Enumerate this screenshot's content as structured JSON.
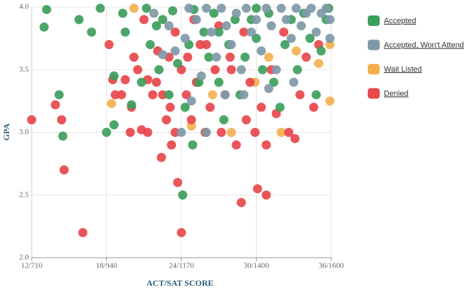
{
  "chart_data": {
    "type": "scatter",
    "xlabel": "ACT/SAT SCORE",
    "ylabel": "GPA",
    "xlim": [
      12,
      36
    ],
    "ylim": [
      2,
      4
    ],
    "xticks": [
      {
        "value": 12,
        "label": "12/710"
      },
      {
        "value": 18,
        "label": "18/940"
      },
      {
        "value": 24,
        "label": "24/1170"
      },
      {
        "value": 30,
        "label": "30/1400"
      },
      {
        "value": 36,
        "label": "36/1600"
      }
    ],
    "yticks": [
      {
        "value": 2,
        "label": "2.0"
      },
      2.5,
      {
        "value": 3,
        "label": "3.0"
      },
      3.5,
      {
        "value": 4,
        "label": "4.0"
      }
    ],
    "grid": true,
    "legend": "right",
    "series": [
      {
        "name": "Accepted",
        "color": "#3d9e5c",
        "x": [
          13.0,
          13.2,
          14.2,
          14.5,
          15.8,
          16.8,
          17.5,
          18.0,
          18.6,
          18.6,
          19.3,
          19.5,
          20.0,
          20.8,
          21.2,
          21.5,
          22.2,
          22.5,
          23.0,
          23.3,
          23.7,
          24.1,
          24.3,
          24.6,
          24.9,
          25.4,
          25.8,
          26.2,
          26.6,
          27.0,
          27.4,
          27.8,
          28.3,
          28.7,
          29.1,
          29.6,
          30.0,
          30.5,
          31.0,
          31.4,
          31.9,
          32.3,
          32.8,
          33.3,
          33.8,
          34.3,
          34.8,
          35.2,
          35.6,
          35.8,
          25.0,
          22.0,
          27.0,
          30.0
        ],
        "values": [
          3.84,
          3.98,
          3.3,
          2.97,
          3.9,
          3.8,
          3.99,
          3.0,
          3.06,
          3.45,
          3.95,
          3.8,
          3.22,
          3.4,
          3.99,
          3.7,
          3.5,
          3.9,
          3.3,
          3.97,
          3.55,
          2.5,
          3.2,
          3.7,
          2.9,
          3.4,
          3.8,
          3.6,
          3.95,
          3.4,
          3.1,
          3.7,
          3.9,
          3.3,
          3.6,
          3.9,
          3.75,
          3.5,
          3.95,
          3.4,
          3.2,
          3.7,
          3.9,
          3.5,
          3.95,
          3.75,
          3.3,
          3.65,
          3.9,
          3.99,
          3.98,
          3.85,
          3.8,
          3.99
        ]
      },
      {
        "name": "Accepted, Won't Attend",
        "color": "#7f99a8",
        "x": [
          21.8,
          22.5,
          23.0,
          23.5,
          24.0,
          24.3,
          24.6,
          25.2,
          25.6,
          26.0,
          26.4,
          26.8,
          27.2,
          27.6,
          28.0,
          28.4,
          28.8,
          29.2,
          29.6,
          30.0,
          30.4,
          30.8,
          31.2,
          31.6,
          32.0,
          32.4,
          32.8,
          33.2,
          33.6,
          34.0,
          34.4,
          34.8,
          35.2,
          35.6,
          35.9,
          35.9,
          29.0,
          31.0,
          33.0,
          26.0,
          24.8,
          27.5
        ],
        "values": [
          3.95,
          3.62,
          3.85,
          3.65,
          3.0,
          3.75,
          3.99,
          3.9,
          3.45,
          3.99,
          3.8,
          3.6,
          3.99,
          3.85,
          3.7,
          3.95,
          3.5,
          3.99,
          3.8,
          3.9,
          3.65,
          3.99,
          3.85,
          3.5,
          3.99,
          3.9,
          3.75,
          3.99,
          3.85,
          3.95,
          3.99,
          3.8,
          3.95,
          3.99,
          3.9,
          3.75,
          3.3,
          3.35,
          3.4,
          3.0,
          3.25,
          3.3
        ]
      },
      {
        "name": "Wait Listed",
        "color": "#f4b04f",
        "x": [
          18.4,
          20.2,
          24.8,
          28.0,
          29.9,
          32.0,
          33.2,
          35.0,
          35.9,
          35.9,
          31.0,
          26.5
        ],
        "values": [
          3.23,
          3.99,
          3.05,
          3.0,
          3.4,
          3.0,
          3.65,
          3.55,
          3.25,
          3.7,
          3.6,
          3.3
        ]
      },
      {
        "name": "Denied",
        "color": "#e8474b",
        "x": [
          12.0,
          13.9,
          14.4,
          14.6,
          16.1,
          18.2,
          18.5,
          18.7,
          19.2,
          19.5,
          19.9,
          20.2,
          20.5,
          20.8,
          21.3,
          21.3,
          21.7,
          22.1,
          22.4,
          22.5,
          22.8,
          23.0,
          23.1,
          23.2,
          23.5,
          23.7,
          24.0,
          24.0,
          24.4,
          24.8,
          25.2,
          25.5,
          25.9,
          26.3,
          26.7,
          27.2,
          27.5,
          27.9,
          28.4,
          28.8,
          29.2,
          29.5,
          29.9,
          30.1,
          30.4,
          30.8,
          30.8,
          31.2,
          31.6,
          32.2,
          32.6,
          33.1,
          33.5,
          34.0,
          34.6,
          35.0,
          29.0,
          27.0,
          25.0,
          23.5,
          24.5,
          26.0,
          28.0,
          22.0,
          21.0,
          20.0
        ],
        "values": [
          3.1,
          3.22,
          3.1,
          2.7,
          2.2,
          3.7,
          3.42,
          3.3,
          3.3,
          3.42,
          3.0,
          3.6,
          3.5,
          3.02,
          3.0,
          3.42,
          3.3,
          3.65,
          2.8,
          3.3,
          3.1,
          3.6,
          3.2,
          2.9,
          3.0,
          2.6,
          2.2,
          3.5,
          3.3,
          3.1,
          3.4,
          3.7,
          3.0,
          3.2,
          3.5,
          3.0,
          3.3,
          3.6,
          2.9,
          2.44,
          3.1,
          3.4,
          3.0,
          2.55,
          3.2,
          2.5,
          2.9,
          3.5,
          3.15,
          3.8,
          3.0,
          2.95,
          3.3,
          3.6,
          3.2,
          3.7,
          3.8,
          3.85,
          3.9,
          3.8,
          3.6,
          3.7,
          3.5,
          3.4,
          3.9,
          3.2
        ]
      }
    ]
  }
}
